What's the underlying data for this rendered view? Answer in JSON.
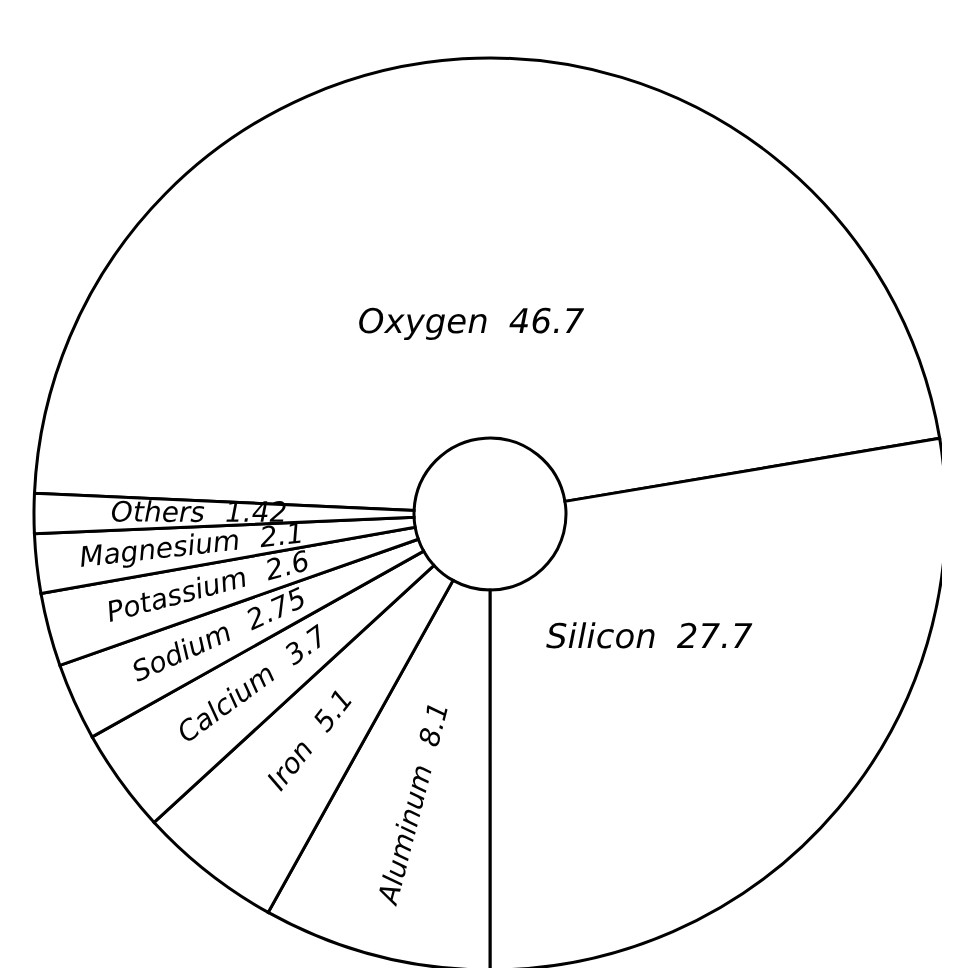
{
  "chart_data": {
    "type": "donut",
    "categories": [
      "Oxygen",
      "Silicon",
      "Aluminum",
      "Iron",
      "Calcium",
      "Sodium",
      "Potassium",
      "Magnesium",
      "Others"
    ],
    "values": [
      46.7,
      27.7,
      8.1,
      5.1,
      3.7,
      2.75,
      2.6,
      2.1,
      1.42
    ],
    "colors": [
      "#ffffff",
      "#ffffff",
      "#ffffff",
      "#ffffff",
      "#ffffff",
      "#ffffff",
      "#ffffff",
      "#ffffff",
      "#ffffff"
    ],
    "data_labels": true
  }
}
